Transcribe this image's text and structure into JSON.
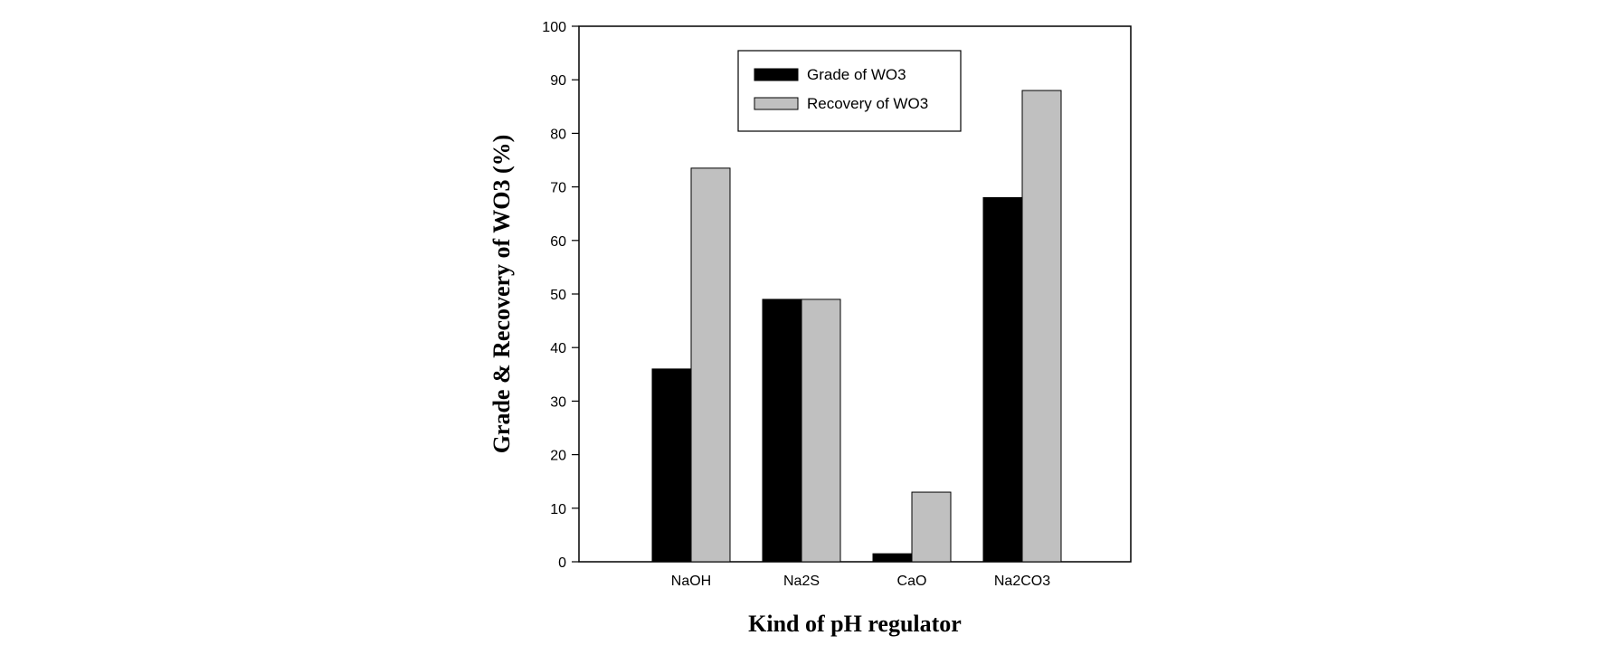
{
  "chart_data": {
    "type": "bar",
    "title": "",
    "xlabel": "Kind of pH regulator",
    "ylabel": "Grade & Recovery of WO3 (%)",
    "categories": [
      "NaOH",
      "Na2S",
      "CaO",
      "Na2CO3"
    ],
    "series": [
      {
        "name": "Grade of WO3",
        "values": [
          36,
          49,
          1.5,
          68
        ],
        "color": "#000000"
      },
      {
        "name": "Recovery of WO3",
        "values": [
          73.5,
          49,
          13,
          88
        ],
        "color": "#c0c0c0"
      }
    ],
    "ylim": [
      0,
      100
    ],
    "yticks": [
      0,
      10,
      20,
      30,
      40,
      50,
      60,
      70,
      80,
      90,
      100
    ],
    "grid": false,
    "legend_position": "top-center"
  }
}
